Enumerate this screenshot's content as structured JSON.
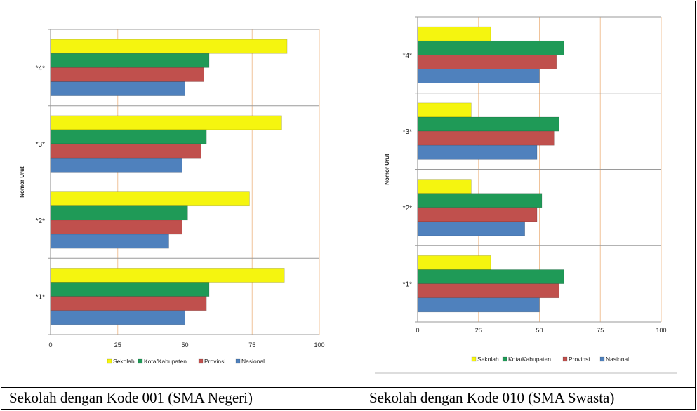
{
  "captions": {
    "left": "Sekolah dengan Kode 001 (SMA Negeri)",
    "right": "Sekolah dengan Kode 010 (SMA Swasta)"
  },
  "colors": {
    "Sekolah": "#f5f50f",
    "Kota/Kabupaten": "#1f9a57",
    "Provinsi": "#c0504d",
    "Nasional": "#4f81bd",
    "gridline": "#f0c39a",
    "separator": "#bbbbbb"
  },
  "chart_data": [
    {
      "type": "bar",
      "orientation": "horizontal",
      "ylabel": "Nomor Urut",
      "xlabel": "",
      "categories": [
        "*1*",
        "*2*",
        "*3*",
        "*4*"
      ],
      "xlim": [
        0,
        100
      ],
      "xticks": [
        "0",
        "25",
        "50",
        "75",
        "100"
      ],
      "legend_position": "bottom",
      "series": [
        {
          "name": "Sekolah",
          "values": [
            87,
            74,
            86,
            88
          ]
        },
        {
          "name": "Kota/Kabupaten",
          "values": [
            59,
            51,
            58,
            59
          ]
        },
        {
          "name": "Provinsi",
          "values": [
            58,
            49,
            56,
            57
          ]
        },
        {
          "name": "Nasional",
          "values": [
            50,
            44,
            49,
            50
          ]
        }
      ]
    },
    {
      "type": "bar",
      "orientation": "horizontal",
      "ylabel": "Nomor Urut",
      "xlabel": "",
      "categories": [
        "*1*",
        "*2*",
        "*3*",
        "*4*"
      ],
      "xlim": [
        0,
        100
      ],
      "xticks": [
        "0",
        "25",
        "50",
        "75",
        "100"
      ],
      "legend_position": "bottom",
      "series": [
        {
          "name": "Sekolah",
          "values": [
            30,
            22,
            22,
            30
          ]
        },
        {
          "name": "Kota/Kabupaten",
          "values": [
            60,
            51,
            58,
            60
          ]
        },
        {
          "name": "Provinsi",
          "values": [
            58,
            49,
            56,
            57
          ]
        },
        {
          "name": "Nasional",
          "values": [
            50,
            44,
            49,
            50
          ]
        }
      ]
    }
  ]
}
